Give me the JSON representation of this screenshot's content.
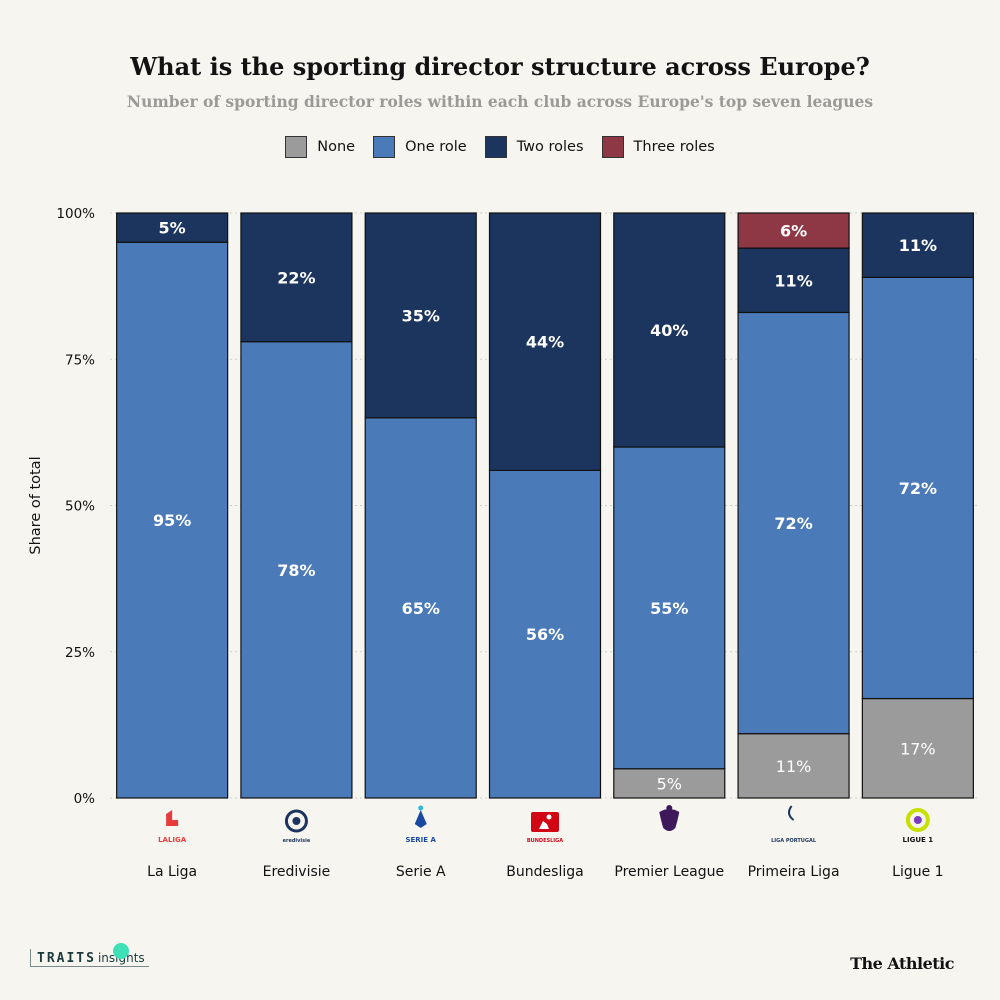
{
  "chart_data": {
    "type": "bar",
    "stacked": true,
    "title": "What is the sporting director structure across Europe?",
    "subtitle": "Number of sporting director roles within each club across Europe's top seven leagues",
    "ylabel": "Share of total",
    "xlabel": "",
    "ylim": [
      0,
      100
    ],
    "yticks": [
      "0%",
      "25%",
      "50%",
      "75%",
      "100%"
    ],
    "ytick_values": [
      0,
      25,
      50,
      75,
      100
    ],
    "grid": true,
    "legend_position": "top",
    "categories": [
      "La Liga",
      "Eredivisie",
      "Serie A",
      "Bundesliga",
      "Premier League",
      "Primeira Liga",
      "Ligue 1"
    ],
    "series": [
      {
        "name": "None",
        "color": "#9b9b9b",
        "values": [
          0,
          0,
          0,
          0,
          5,
          11,
          17
        ],
        "labels": [
          "",
          "",
          "",
          "",
          "5%",
          "11%",
          "17%"
        ]
      },
      {
        "name": "One role",
        "color": "#4a7ab8",
        "values": [
          95,
          78,
          65,
          56,
          55,
          72,
          72
        ],
        "labels": [
          "95%",
          "78%",
          "65%",
          "56%",
          "55%",
          "72%",
          "72%"
        ]
      },
      {
        "name": "Two roles",
        "color": "#1c355e",
        "values": [
          5,
          22,
          35,
          44,
          40,
          11,
          11
        ],
        "labels": [
          "5%",
          "22%",
          "35%",
          "44%",
          "40%",
          "11%",
          "11%"
        ]
      },
      {
        "name": "Three roles",
        "color": "#8e3846",
        "values": [
          0,
          0,
          0,
          0,
          0,
          6,
          0
        ],
        "labels": [
          "",
          "",
          "",
          "",
          "",
          "6%",
          ""
        ]
      }
    ]
  },
  "logos": [
    {
      "league": "La Liga",
      "icon": "laliga-logo",
      "text": "LALIGA",
      "color": "#e83b3b"
    },
    {
      "league": "Eredivisie",
      "icon": "eredivisie-logo",
      "text": "eredivisie",
      "color": "#1c355e"
    },
    {
      "league": "Serie A",
      "icon": "serie-a-logo",
      "text": "SERIE A",
      "color": "#1a4aa0"
    },
    {
      "league": "Bundesliga",
      "icon": "bundesliga-logo",
      "text": "BUNDESLIGA",
      "color": "#d20515"
    },
    {
      "league": "Premier League",
      "icon": "premier-league-logo",
      "text": "",
      "color": "#3d195b"
    },
    {
      "league": "Primeira Liga",
      "icon": "liga-portugal-logo",
      "text": "LIGA PORTUGAL",
      "color": "#1c355e"
    },
    {
      "league": "Ligue 1",
      "icon": "ligue-1-logo",
      "text": "LIGUE 1",
      "color": "#c8e000"
    }
  ],
  "branding": {
    "left": {
      "traits": "TRAITS",
      "insights": "insights"
    },
    "right": "The Athletic"
  }
}
